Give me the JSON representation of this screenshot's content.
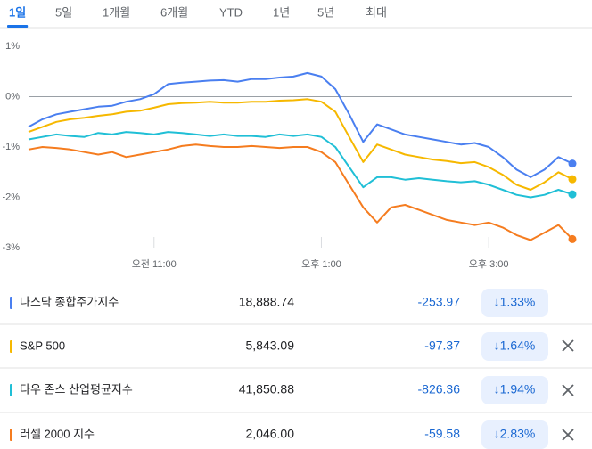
{
  "tabs": {
    "items": [
      "1일",
      "5일",
      "1개월",
      "6개월",
      "YTD",
      "1년",
      "5년",
      "최대"
    ],
    "selected": 0
  },
  "chart_data": {
    "type": "line",
    "x": [
      0,
      10,
      20,
      30,
      40,
      50,
      60,
      70,
      80,
      90,
      100,
      110,
      120,
      130,
      140,
      150,
      160,
      170,
      180,
      190,
      200,
      210,
      220,
      230,
      240,
      250,
      260,
      270,
      280,
      290,
      300,
      310,
      320,
      330,
      340,
      350,
      360,
      370,
      380,
      390
    ],
    "xlim": [
      0,
      390
    ],
    "xticks": [
      {
        "value": 90,
        "label": "오전 11:00"
      },
      {
        "value": 210,
        "label": "오후 1:00"
      },
      {
        "value": 330,
        "label": "오후 3:00"
      }
    ],
    "ylim": [
      -3,
      1
    ],
    "yticks": [
      {
        "value": 1,
        "label": "1%"
      },
      {
        "value": 0,
        "label": "0%"
      },
      {
        "value": -1,
        "label": "-1%"
      },
      {
        "value": -2,
        "label": "-2%"
      },
      {
        "value": -3,
        "label": "-3%"
      }
    ],
    "baseline": 0,
    "series": [
      {
        "name": "나스닥 종합주가지수",
        "color": "#4a7ff0",
        "values": [
          -0.6,
          -0.45,
          -0.35,
          -0.3,
          -0.25,
          -0.2,
          -0.18,
          -0.1,
          -0.05,
          0.05,
          0.25,
          0.28,
          0.3,
          0.32,
          0.33,
          0.3,
          0.35,
          0.35,
          0.38,
          0.4,
          0.47,
          0.4,
          0.15,
          -0.35,
          -0.9,
          -0.55,
          -0.65,
          -0.75,
          -0.8,
          -0.85,
          -0.9,
          -0.95,
          -0.92,
          -1.0,
          -1.2,
          -1.45,
          -1.6,
          -1.45,
          -1.2,
          -1.33
        ]
      },
      {
        "name": "S&P 500",
        "color": "#f6b800",
        "values": [
          -0.7,
          -0.6,
          -0.5,
          -0.45,
          -0.42,
          -0.38,
          -0.35,
          -0.3,
          -0.28,
          -0.22,
          -0.15,
          -0.13,
          -0.12,
          -0.1,
          -0.12,
          -0.12,
          -0.1,
          -0.1,
          -0.08,
          -0.07,
          -0.05,
          -0.1,
          -0.3,
          -0.8,
          -1.3,
          -0.95,
          -1.05,
          -1.15,
          -1.2,
          -1.25,
          -1.28,
          -1.32,
          -1.3,
          -1.4,
          -1.55,
          -1.75,
          -1.85,
          -1.7,
          -1.5,
          -1.64
        ]
      },
      {
        "name": "다우 존스 산업평균지수",
        "color": "#20bfd6",
        "values": [
          -0.85,
          -0.8,
          -0.75,
          -0.78,
          -0.8,
          -0.72,
          -0.75,
          -0.7,
          -0.72,
          -0.75,
          -0.7,
          -0.72,
          -0.75,
          -0.78,
          -0.75,
          -0.78,
          -0.78,
          -0.8,
          -0.75,
          -0.78,
          -0.75,
          -0.8,
          -1.0,
          -1.4,
          -1.8,
          -1.6,
          -1.6,
          -1.65,
          -1.62,
          -1.65,
          -1.68,
          -1.7,
          -1.68,
          -1.75,
          -1.85,
          -1.95,
          -2.0,
          -1.95,
          -1.85,
          -1.94
        ]
      },
      {
        "name": "러셀 2000 지수",
        "color": "#f57c1f",
        "values": [
          -1.05,
          -1.0,
          -1.02,
          -1.05,
          -1.1,
          -1.15,
          -1.1,
          -1.2,
          -1.15,
          -1.1,
          -1.05,
          -0.98,
          -0.95,
          -0.98,
          -1.0,
          -1.0,
          -0.98,
          -1.0,
          -1.02,
          -1.0,
          -1.0,
          -1.1,
          -1.3,
          -1.75,
          -2.2,
          -2.5,
          -2.2,
          -2.15,
          -2.25,
          -2.35,
          -2.45,
          -2.5,
          -2.55,
          -2.5,
          -2.6,
          -2.75,
          -2.85,
          -2.7,
          -2.55,
          -2.83
        ]
      }
    ]
  },
  "quotes": [
    {
      "price": "18,888.74",
      "change": "-253.97",
      "percent": "↓1.33%"
    },
    {
      "price": "5,843.09",
      "change": "-97.37",
      "percent": "↓1.64%"
    },
    {
      "price": "41,850.88",
      "change": "-826.36",
      "percent": "↓1.94%"
    },
    {
      "price": "2,046.00",
      "change": "-59.58",
      "percent": "↓2.83%"
    }
  ]
}
